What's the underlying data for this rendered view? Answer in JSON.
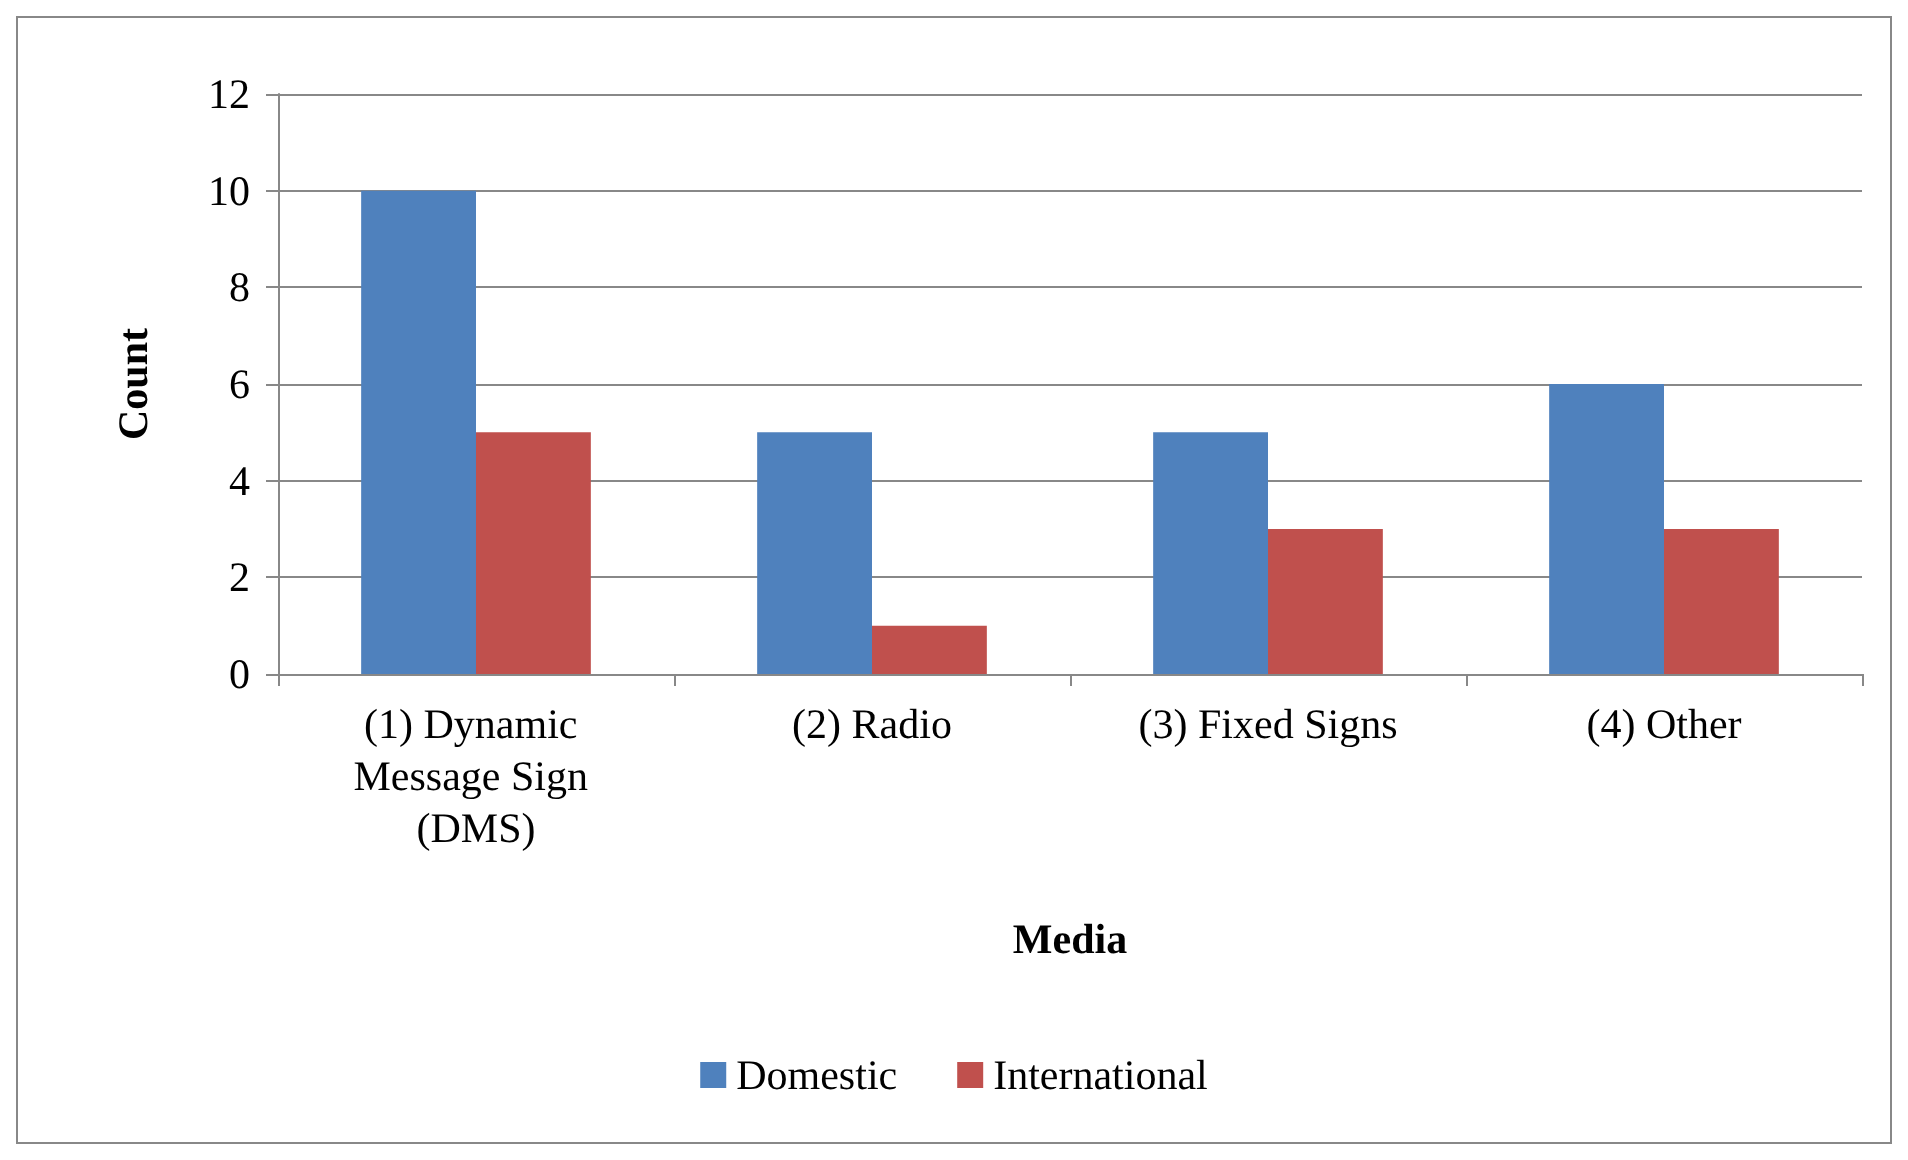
{
  "chart_data": {
    "type": "bar",
    "xlabel": "Media",
    "ylabel": "Count",
    "categories": [
      "(1) Dynamic Message Sign (DMS)",
      "(2) Radio",
      "(3) Fixed Signs",
      "(4) Other"
    ],
    "series": [
      {
        "name": "Domestic",
        "color": "#4f81bd",
        "values": [
          10,
          5,
          5,
          6
        ]
      },
      {
        "name": "International",
        "color": "#c0504d",
        "values": [
          5,
          1,
          3,
          3
        ]
      }
    ],
    "ylim": [
      0,
      12
    ],
    "yticks": [
      0,
      2,
      4,
      6,
      8,
      10,
      12
    ],
    "grid": "y",
    "legend": "bottom"
  }
}
